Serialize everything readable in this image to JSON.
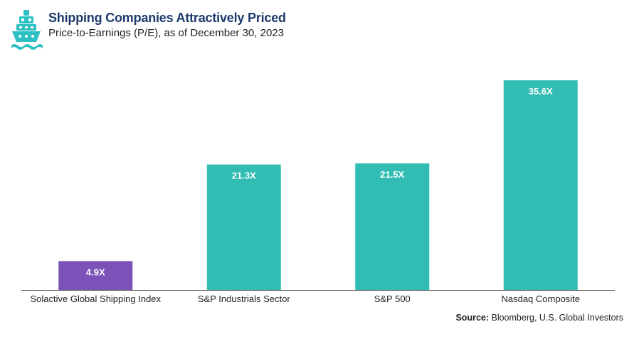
{
  "header": {
    "title": "Shipping Companies Attractively Priced",
    "subtitle": "Price-to-Earnings (P/E), as of December 30, 2023",
    "logo_icon": "cargo-ship-icon"
  },
  "source": {
    "label": "Source:",
    "text": " Bloomberg, U.S. Global Investors"
  },
  "colors": {
    "highlight": "#7b52b8",
    "bar": "#31bdb3",
    "axis": "#555555",
    "logo": "#2cc0c4"
  },
  "chart_data": {
    "type": "bar",
    "title": "Shipping Companies Attractively Priced",
    "categories": [
      "Solactive Global Shipping Index",
      "S&P Industrials Sector",
      "S&P 500",
      "Nasdaq Composite"
    ],
    "values": [
      4.9,
      21.3,
      21.5,
      35.6
    ],
    "data_labels": [
      "4.9X",
      "21.3X",
      "21.5X",
      "35.6X"
    ],
    "bar_colors": [
      "#7b52b8",
      "#31bdb3",
      "#31bdb3",
      "#31bdb3"
    ],
    "ylim": [
      0,
      36
    ],
    "xlabel": "",
    "ylabel": "",
    "grid": false,
    "legend": "none"
  }
}
